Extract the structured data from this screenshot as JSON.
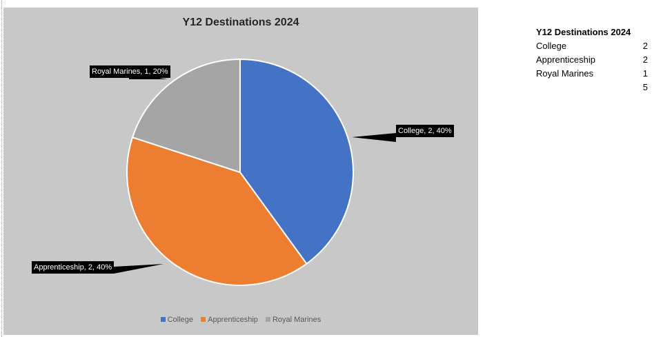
{
  "chart_data": {
    "type": "pie",
    "title": "Y12 Destinations 2024",
    "categories": [
      "College",
      "Apprenticeship",
      "Royal Marines"
    ],
    "values": [
      2,
      2,
      1
    ],
    "percentages": [
      40,
      40,
      20
    ],
    "colors": [
      "#4472C4",
      "#ED7D31",
      "#A5A5A5"
    ],
    "data_labels": [
      "College, 2, 40%",
      "Apprenticeship, 2, 40%",
      "Royal Marines, 1, 20%"
    ],
    "legend_position": "bottom",
    "background_color": "#C8C8C8"
  },
  "table": {
    "title": "Y12 Destinations 2024",
    "rows": [
      {
        "label": "College",
        "value": "2"
      },
      {
        "label": "Apprenticeship",
        "value": "2"
      },
      {
        "label": "Royal Marines",
        "value": "1"
      }
    ],
    "total": "5"
  }
}
